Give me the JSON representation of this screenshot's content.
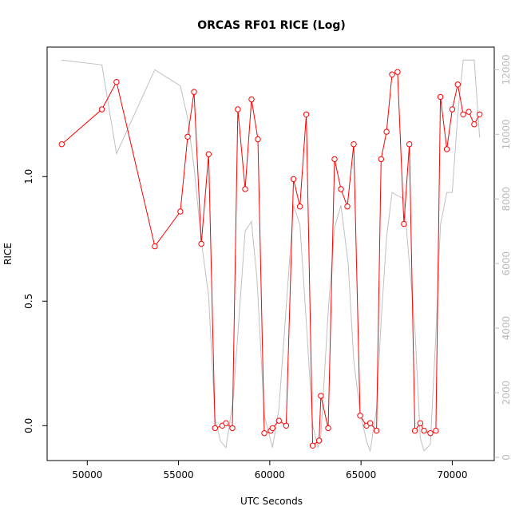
{
  "chart_data": {
    "type": "line",
    "title": "ORCAS RF01 RICE (Log)",
    "xlabel": "UTC Seconds",
    "ylabel": "RICE",
    "xlim": [
      47800,
      72300
    ],
    "ylim": [
      -0.14,
      1.52
    ],
    "y2lim": [
      -100,
      12700
    ],
    "x_ticks": [
      50000,
      55000,
      60000,
      65000,
      70000
    ],
    "y_ticks": [
      0.0,
      0.5,
      1.0
    ],
    "y_tick_labels": [
      "0.0",
      "0.5",
      "1.0"
    ],
    "y2_ticks": [
      0,
      2000,
      4000,
      6000,
      8000,
      10000,
      12000
    ],
    "grid": false,
    "series": [
      {
        "axis": "left",
        "color": "#ff0000",
        "marker": "open-circle",
        "x": [
          48600,
          50800,
          51600,
          53700,
          55100,
          55500,
          55850,
          56250,
          56650,
          57000,
          57400,
          57600,
          57950,
          58250,
          58650,
          59000,
          59350,
          59700,
          60050,
          60150,
          60500,
          60900,
          61300,
          61650,
          62000,
          62350,
          62700,
          62800,
          63200,
          63550,
          63900,
          64250,
          64600,
          64950,
          65300,
          65500,
          65850,
          66100,
          66400,
          66700,
          67000,
          67350,
          67650,
          67950,
          68250,
          68450,
          68800,
          69100,
          69350,
          69700,
          70000,
          70300,
          70600,
          70900,
          71200,
          71500
        ],
        "y": [
          1.13,
          1.27,
          1.38,
          0.72,
          0.86,
          1.16,
          1.34,
          0.73,
          1.09,
          -0.01,
          0.0,
          0.01,
          -0.01,
          1.27,
          0.95,
          1.31,
          1.15,
          -0.03,
          -0.02,
          -0.01,
          0.02,
          0.0,
          0.99,
          0.88,
          1.25,
          -0.08,
          -0.06,
          0.12,
          -0.01,
          1.07,
          0.95,
          0.88,
          1.13,
          0.04,
          0.0,
          0.01,
          -0.02,
          1.07,
          1.18,
          1.41,
          1.42,
          0.81,
          1.13,
          -0.02,
          0.01,
          -0.02,
          -0.03,
          -0.02,
          1.32,
          1.11,
          1.27,
          1.37,
          1.25,
          1.26,
          1.21,
          1.25
        ]
      },
      {
        "axis": "right",
        "color": "#c0c0c0",
        "marker": "none",
        "x": [
          48600,
          50800,
          51600,
          53700,
          55100,
          55500,
          55850,
          56250,
          56650,
          57000,
          57300,
          57600,
          58000,
          58650,
          59000,
          59300,
          59700,
          60150,
          60500,
          61300,
          61650,
          62000,
          62350,
          62650,
          62800,
          63200,
          63550,
          63900,
          64300,
          64600,
          64950,
          65300,
          65500,
          65850,
          66100,
          66400,
          66700,
          67000,
          67350,
          67650,
          67950,
          68250,
          68450,
          68800,
          69100,
          69350,
          69700,
          70000,
          70300,
          70600,
          71200,
          71500
        ],
        "y": [
          12300,
          12150,
          9400,
          12000,
          11500,
          10500,
          9000,
          6700,
          5000,
          1200,
          500,
          300,
          1800,
          7000,
          7300,
          5500,
          1300,
          300,
          1500,
          7800,
          7200,
          4200,
          1000,
          300,
          700,
          4500,
          7100,
          7800,
          6000,
          3000,
          1400,
          500,
          200,
          1500,
          4200,
          6800,
          8200,
          8100,
          8000,
          6000,
          4000,
          600,
          200,
          400,
          3800,
          7200,
          8200,
          8200,
          10600,
          12300,
          12300,
          9900
        ]
      }
    ]
  }
}
